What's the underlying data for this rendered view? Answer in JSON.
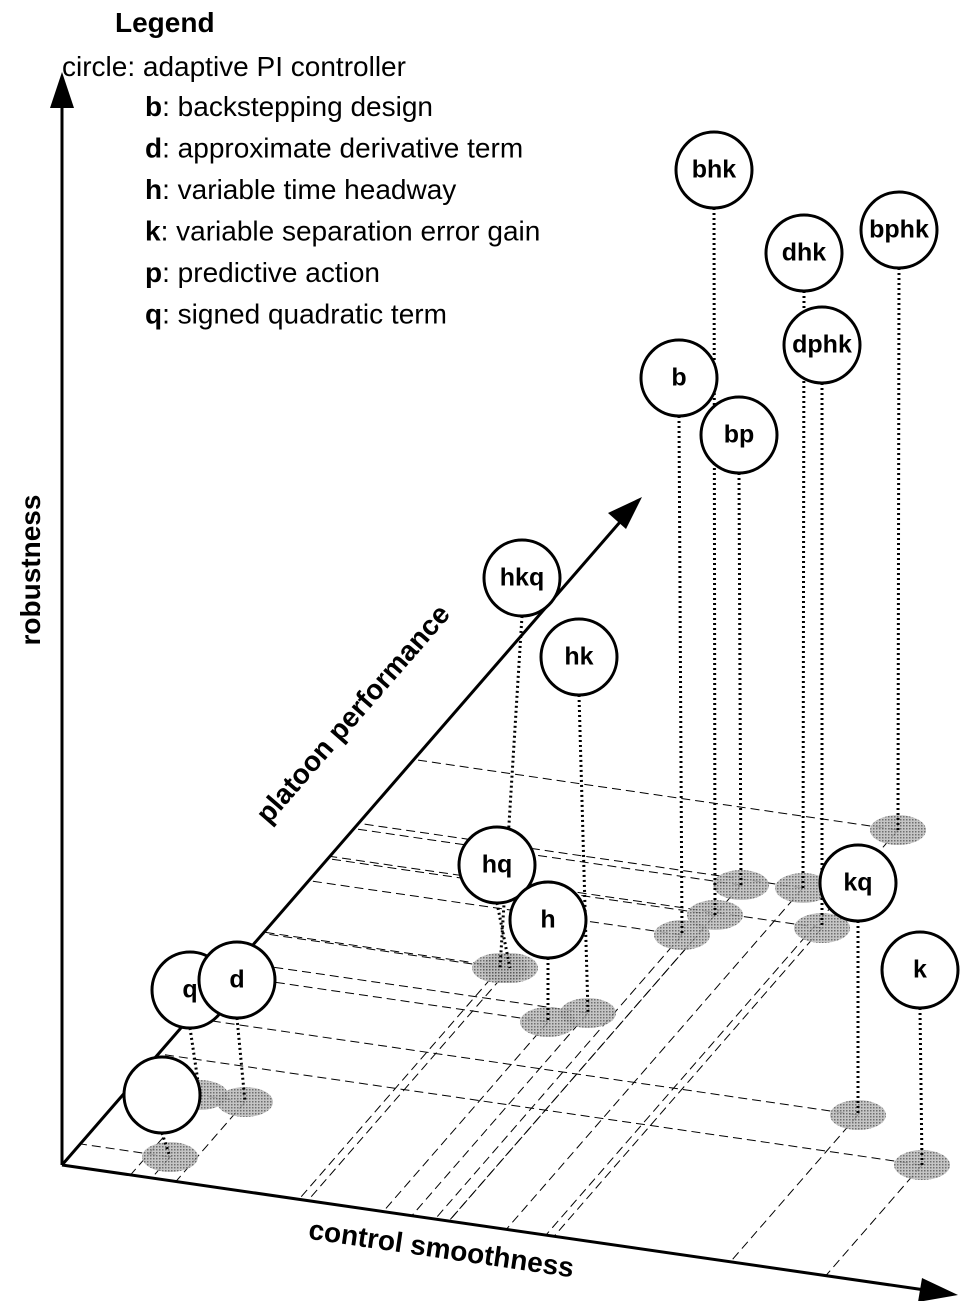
{
  "legend": {
    "title": "Legend",
    "intro": "circle: adaptive PI controller",
    "items": [
      {
        "key": "b",
        "text": ": backstepping design"
      },
      {
        "key": "d",
        "text": ": approximate derivative term"
      },
      {
        "key": "h",
        "text": ": variable time headway"
      },
      {
        "key": "k",
        "text": ": variable separation error gain"
      },
      {
        "key": "p",
        "text": ": predictive action"
      },
      {
        "key": "q",
        "text": ": signed quadratic term"
      }
    ]
  },
  "axes": {
    "vertical": "robustness",
    "horizontal": "control smoothness",
    "depth": "platoon performance"
  },
  "nodes": [
    {
      "label": "q"
    },
    {
      "label": "d"
    },
    {
      "label": "hkq"
    },
    {
      "label": "hk"
    },
    {
      "label": "hq"
    },
    {
      "label": "h"
    },
    {
      "label": "b"
    },
    {
      "label": "bp"
    },
    {
      "label": "bhk"
    },
    {
      "label": "dhk"
    },
    {
      "label": "bphk"
    },
    {
      "label": "dphk"
    },
    {
      "label": "kq"
    },
    {
      "label": "k"
    }
  ]
}
